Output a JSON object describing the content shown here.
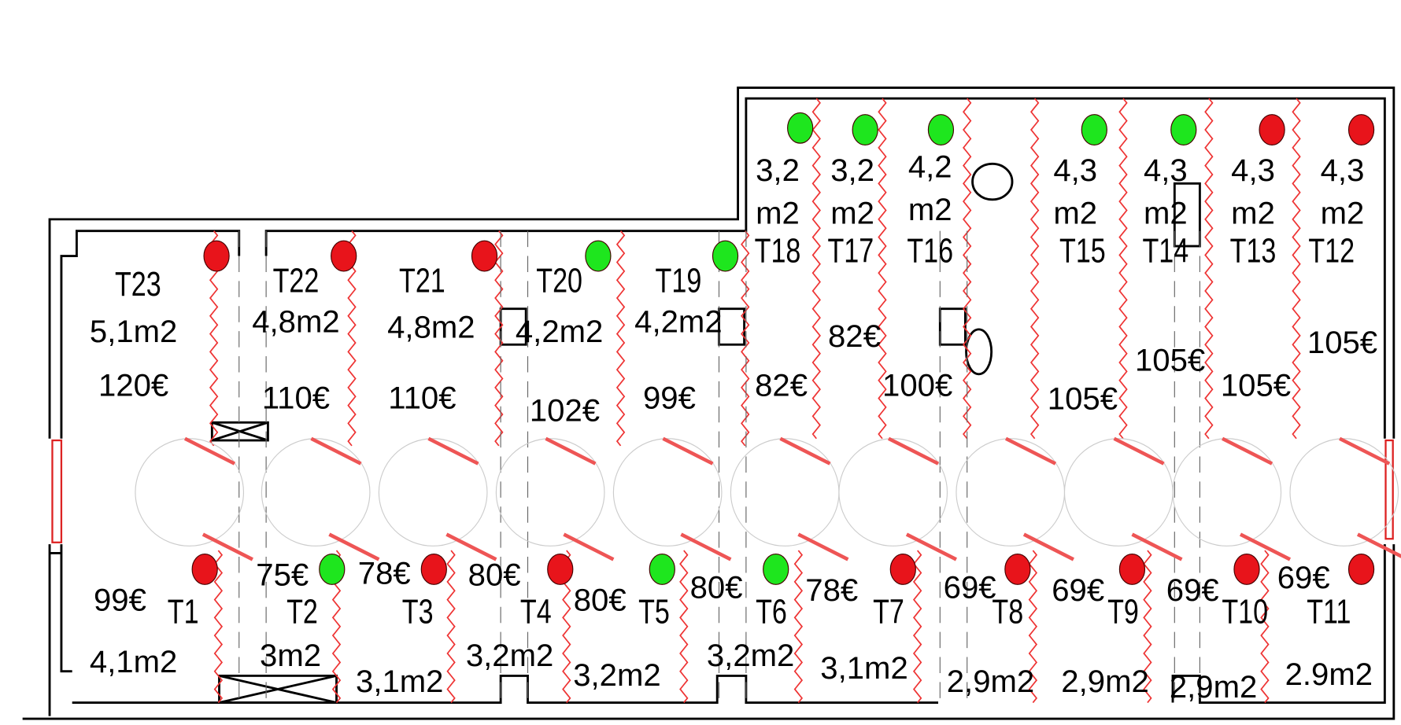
{
  "units": [
    {
      "label": "T23",
      "area": "5,1m2",
      "price": "120€",
      "color": "#e8141b"
    },
    {
      "label": "T22",
      "area": "4,8m2",
      "price": "110€",
      "color": "#e8141b"
    },
    {
      "label": "T21",
      "area": "4,8m2",
      "price": "110€",
      "color": "#e8141b"
    },
    {
      "label": "T20",
      "area": "4,2m2",
      "price": "102€",
      "color": "#1ee61e"
    },
    {
      "label": "T19",
      "area": "4,2m2",
      "price": "99€",
      "color": "#1ee61e"
    },
    {
      "label": "T18",
      "area": "3,2 m2",
      "price": "82€",
      "color": "#1ee61e"
    },
    {
      "label": "T17",
      "area": "3,2 m2",
      "price": "82€",
      "color": "#1ee61e"
    },
    {
      "label": "T16",
      "area": "4,2 m2",
      "price": "100€",
      "color": "#1ee61e"
    },
    {
      "label": "T15",
      "area": "4,3 m2",
      "price": "105€",
      "color": "#1ee61e"
    },
    {
      "label": "T14",
      "area": "4,3 m2",
      "price": "105€",
      "color": "#1ee61e"
    },
    {
      "label": "T13",
      "area": "4,3 m2",
      "price": "105€",
      "color": "#e8141b"
    },
    {
      "label": "T12",
      "area": "4,3 m2",
      "price": "105€",
      "color": "#e8141b"
    },
    {
      "label": "T1",
      "area": "4,1m2",
      "price": "99€",
      "color": "#e8141b"
    },
    {
      "label": "T2",
      "area": "3m2",
      "price": "75€",
      "color": "#1ee61e"
    },
    {
      "label": "T3",
      "area": "3,1m2",
      "price": "78€",
      "color": "#e8141b"
    },
    {
      "label": "T4",
      "area": "3,2m2",
      "price": "80€",
      "color": "#e8141b"
    },
    {
      "label": "T5",
      "area": "3,2m2",
      "price": "80€",
      "color": "#1ee61e"
    },
    {
      "label": "T6",
      "area": "3,2m2",
      "price": "80€",
      "color": "#1ee61e"
    },
    {
      "label": "T7",
      "area": "3,1m2",
      "price": "78€",
      "color": "#e8141b"
    },
    {
      "label": "T8",
      "area": "2,9m2",
      "price": "69€",
      "color": "#e8141b"
    },
    {
      "label": "T9",
      "area": "2,9m2",
      "price": "69€",
      "color": "#e8141b"
    },
    {
      "label": "T10",
      "area": "2,9m2",
      "price": "69€",
      "color": "#e8141b"
    },
    {
      "label": "T11",
      "area": "2.9m2",
      "price": "69€",
      "color": "#e8141b"
    }
  ]
}
